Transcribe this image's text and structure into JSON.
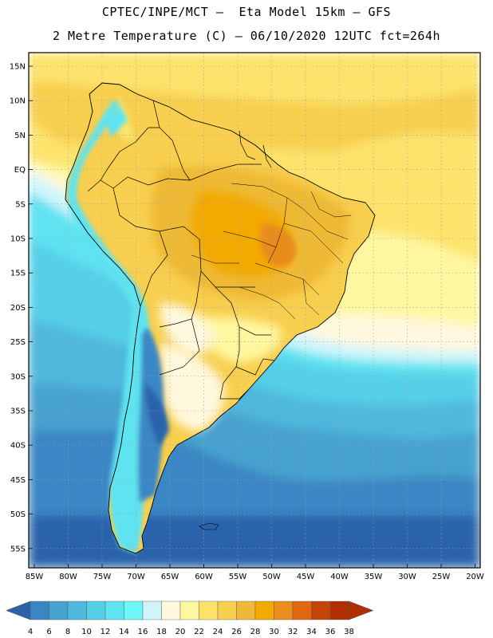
{
  "header": {
    "line1": "CPTEC/INPE/MCT –  Eta Model 15km – GFS",
    "line2": "2 Metre Temperature (C) – 06/10/2020 12UTC fct=264h"
  },
  "map": {
    "lat_labels": [
      "15N",
      "10N",
      "5N",
      "EQ",
      "5S",
      "10S",
      "15S",
      "20S",
      "25S",
      "30S",
      "35S",
      "40S",
      "45S",
      "50S",
      "55S"
    ],
    "lon_labels": [
      "85W",
      "80W",
      "75W",
      "70W",
      "65W",
      "60W",
      "55W",
      "50W",
      "45W",
      "40W",
      "35W",
      "30W",
      "25W",
      "20W"
    ]
  },
  "legend": {
    "values": [
      "4",
      "6",
      "8",
      "10",
      "12",
      "14",
      "16",
      "18",
      "20",
      "22",
      "24",
      "26",
      "28",
      "30",
      "32",
      "34",
      "36",
      "38"
    ],
    "colors": [
      "#2b63ab",
      "#3a86c4",
      "#46a2cf",
      "#4fb8dc",
      "#55cfe8",
      "#5ee3f0",
      "#6ef8fa",
      "#cff5fb",
      "#fff8de",
      "#fff7a0",
      "#fde36c",
      "#f8cf4f",
      "#eeb936",
      "#f2a900",
      "#ea8c1e",
      "#e16710",
      "#c44407",
      "#b02e00"
    ]
  }
}
